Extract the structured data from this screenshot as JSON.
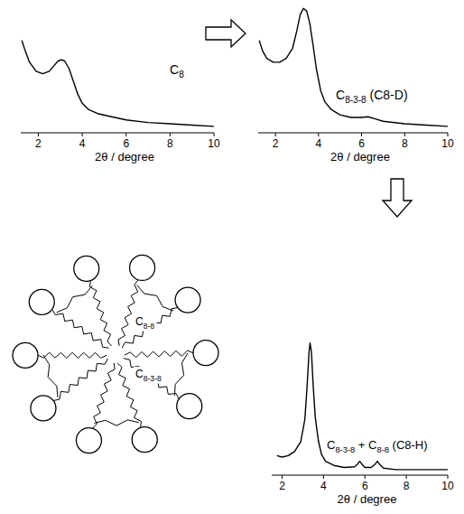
{
  "chart_data": [
    {
      "type": "line",
      "annotation": "C8",
      "x_label": "2θ / degree",
      "x": [
        1.25,
        1.4,
        1.6,
        1.9,
        2.2,
        2.5,
        2.7,
        2.9,
        3.05,
        3.2,
        3.4,
        3.6,
        3.8,
        4.0,
        4.3,
        4.7,
        5.2,
        6.0,
        7.0,
        8.0,
        9.0,
        10.0
      ],
      "values": [
        72,
        64,
        55,
        48,
        46,
        48,
        52,
        56,
        57,
        56,
        50,
        40,
        30,
        23,
        18,
        15,
        13,
        10,
        8,
        7,
        6,
        5
      ],
      "xlim": [
        1.2,
        10
      ],
      "xticks": [
        2,
        4,
        6,
        8,
        10
      ],
      "ylim": [
        0,
        100
      ],
      "color": "#000000",
      "tick_labels": "x"
    },
    {
      "type": "line",
      "annotation": "C8-3-8 (C8-D)",
      "x_label": "2θ / degree",
      "x": [
        1.25,
        1.4,
        1.6,
        1.9,
        2.2,
        2.5,
        2.8,
        3.0,
        3.15,
        3.3,
        3.45,
        3.6,
        3.75,
        3.9,
        4.1,
        4.3,
        4.6,
        5.0,
        5.5,
        6.0,
        6.3,
        6.6,
        7.0,
        8.0,
        9.0,
        10.0
      ],
      "values": [
        72,
        64,
        58,
        55,
        55,
        58,
        66,
        80,
        92,
        97,
        95,
        85,
        68,
        50,
        33,
        24,
        18,
        14,
        12,
        12,
        12.5,
        11,
        9,
        7,
        6,
        5
      ],
      "xlim": [
        1.2,
        10
      ],
      "xticks": [
        2,
        4,
        6,
        8,
        10
      ],
      "ylim": [
        0,
        100
      ],
      "color": "#000000",
      "tick_labels": "x"
    },
    {
      "type": "line",
      "annotation": "C8-3-8 + C8-8 (C8-H)",
      "x_label": "2θ / degree",
      "x": [
        1.75,
        2.0,
        2.3,
        2.6,
        2.9,
        3.1,
        3.2,
        3.3,
        3.35,
        3.42,
        3.5,
        3.6,
        3.75,
        3.9,
        4.1,
        4.5,
        5.0,
        5.5,
        5.65,
        5.75,
        5.85,
        6.0,
        6.3,
        6.5,
        6.6,
        6.7,
        6.9,
        7.5,
        8.5,
        10.0
      ],
      "values": [
        14,
        13,
        14,
        17,
        24,
        40,
        62,
        88,
        95,
        88,
        65,
        42,
        25,
        15,
        10,
        7,
        5.5,
        6,
        8,
        10,
        8,
        5.5,
        5.5,
        8,
        10,
        8,
        5,
        4,
        4,
        4
      ],
      "xlim": [
        1.5,
        10
      ],
      "xticks": [
        2,
        4,
        6,
        8,
        10
      ],
      "ylim": [
        0,
        100
      ],
      "color": "#000000",
      "tick_labels": "x"
    }
  ],
  "diagram": {
    "labels": [
      "C8-8",
      "C8-3-8"
    ]
  }
}
